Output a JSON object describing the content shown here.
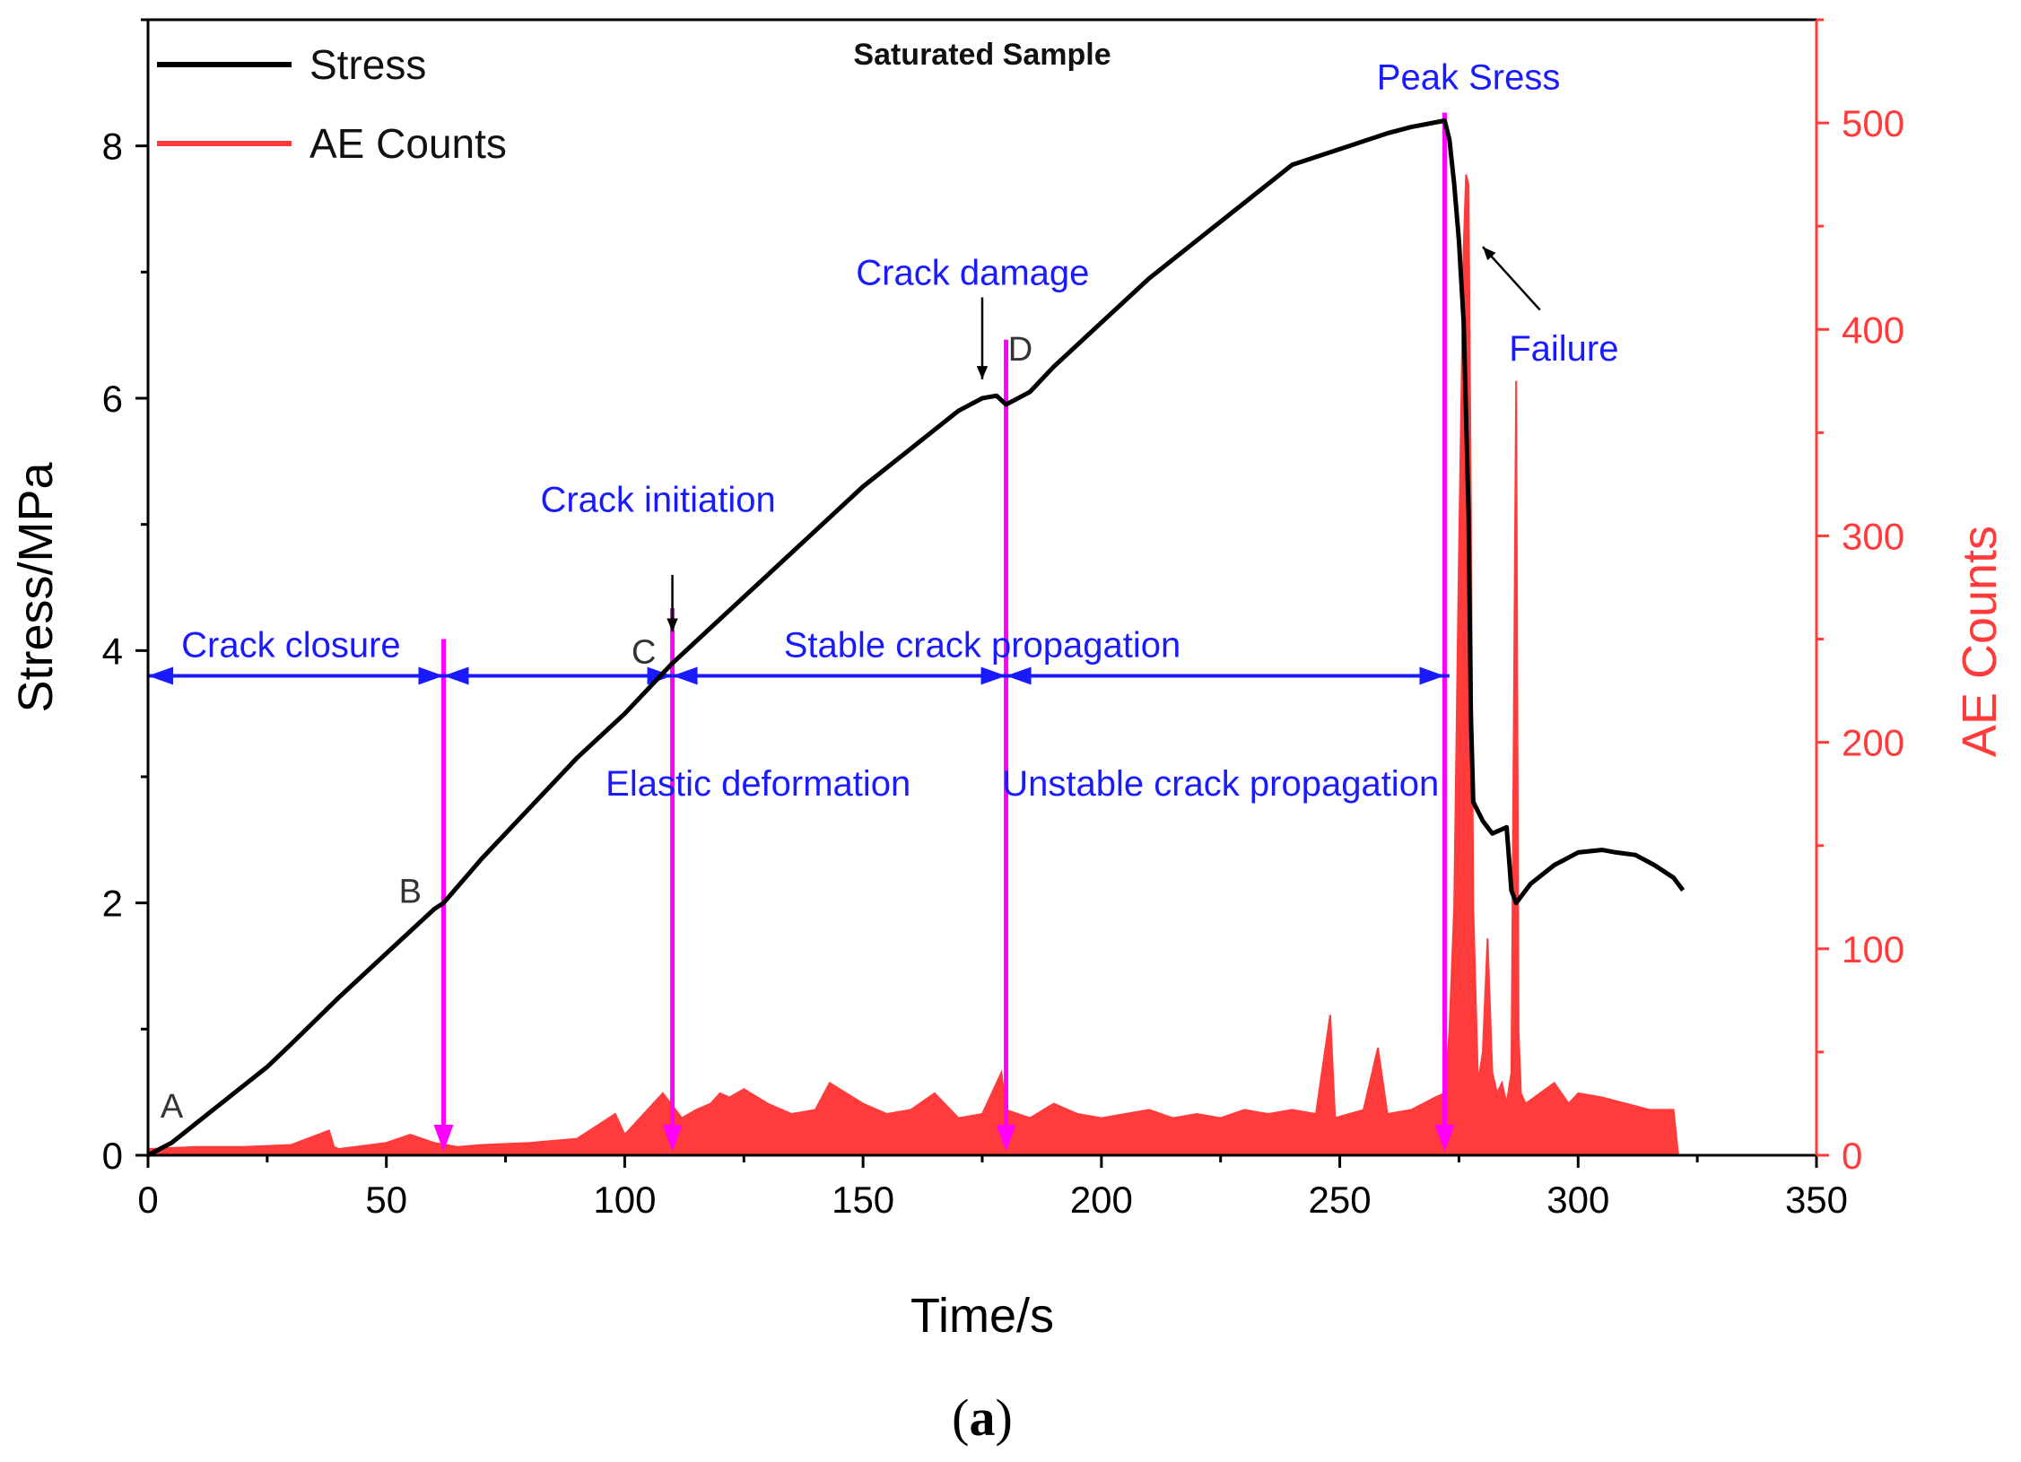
{
  "chart_data": {
    "type": "line",
    "title": "Saturated Sample",
    "xlabel": "Time/s",
    "ylabel": "Stress/MPa",
    "y2label": "AE Counts",
    "xlim": [
      0,
      350
    ],
    "ylim": [
      0,
      9
    ],
    "y2lim": [
      0,
      550
    ],
    "xticks": [
      0,
      50,
      100,
      150,
      200,
      250,
      300,
      350
    ],
    "yticks": [
      0,
      2,
      4,
      6,
      8
    ],
    "y2ticks": [
      0,
      100,
      200,
      300,
      400,
      500
    ],
    "legend": {
      "position": "top-left",
      "entries": [
        "Stress",
        "AE Counts"
      ]
    },
    "colors": {
      "stress": "#000000",
      "ae": "#ff3b3b",
      "annotation": "#1a1aff",
      "marker": "#ff00ff",
      "right_axis": "#ff3b3b"
    },
    "series": [
      {
        "name": "Stress",
        "axis": "left",
        "x": [
          0,
          5,
          10,
          15,
          20,
          25,
          30,
          40,
          50,
          60,
          62,
          70,
          80,
          90,
          100,
          110,
          120,
          130,
          140,
          150,
          160,
          170,
          175,
          178,
          180,
          185,
          190,
          200,
          210,
          220,
          230,
          240,
          248,
          252,
          260,
          265,
          272,
          273,
          274,
          275,
          276,
          277,
          277.5,
          278,
          280,
          282,
          285,
          286,
          286.5,
          287,
          290,
          295,
          300,
          305,
          308,
          312,
          316,
          320,
          322
        ],
        "y": [
          0,
          0.1,
          0.25,
          0.4,
          0.55,
          0.7,
          0.88,
          1.25,
          1.6,
          1.95,
          2.0,
          2.35,
          2.75,
          3.15,
          3.5,
          3.9,
          4.25,
          4.6,
          4.95,
          5.3,
          5.6,
          5.9,
          6.0,
          6.02,
          5.95,
          6.05,
          6.25,
          6.6,
          6.95,
          7.25,
          7.55,
          7.85,
          7.95,
          8.0,
          8.1,
          8.15,
          8.2,
          8.05,
          7.7,
          7.25,
          6.6,
          5.1,
          3.5,
          2.8,
          2.65,
          2.55,
          2.6,
          2.1,
          2.05,
          2.0,
          2.15,
          2.3,
          2.4,
          2.42,
          2.4,
          2.38,
          2.3,
          2.2,
          2.1
        ]
      },
      {
        "name": "AE Counts",
        "axis": "right",
        "x": [
          0,
          10,
          20,
          30,
          38,
          39,
          40,
          50,
          55,
          60,
          65,
          70,
          80,
          90,
          98,
          100,
          108,
          112,
          115,
          118,
          120,
          122,
          125,
          130,
          135,
          140,
          143,
          150,
          155,
          160,
          165,
          170,
          175,
          179,
          180,
          185,
          190,
          195,
          200,
          205,
          210,
          215,
          220,
          225,
          230,
          235,
          240,
          245,
          248,
          249,
          252,
          255,
          258,
          260,
          265,
          270,
          272,
          273,
          274,
          275,
          276,
          276.5,
          277,
          277.5,
          278,
          279,
          280,
          281,
          282,
          283,
          284,
          285,
          286,
          287,
          287.5,
          288,
          289,
          292,
          295,
          298,
          300,
          305,
          310,
          315,
          320,
          321
        ],
        "y": [
          3,
          4,
          4,
          5,
          12,
          4,
          3,
          6,
          10,
          6,
          4,
          5,
          6,
          8,
          20,
          10,
          30,
          18,
          22,
          25,
          30,
          28,
          32,
          25,
          20,
          22,
          35,
          25,
          20,
          22,
          30,
          18,
          20,
          40,
          22,
          18,
          25,
          20,
          18,
          20,
          22,
          18,
          20,
          18,
          22,
          20,
          22,
          20,
          68,
          18,
          20,
          22,
          52,
          20,
          22,
          28,
          30,
          60,
          120,
          290,
          440,
          475,
          470,
          315,
          120,
          35,
          50,
          105,
          40,
          30,
          35,
          25,
          40,
          375,
          60,
          30,
          25,
          30,
          35,
          25,
          30,
          28,
          25,
          22,
          22,
          0
        ]
      }
    ],
    "annotations": [
      {
        "text": "Crack closure",
        "x": 30,
        "y": 3.95,
        "type": "region-label"
      },
      {
        "text": "Elastic deformation",
        "x": 128,
        "y": 2.85,
        "type": "region-label"
      },
      {
        "text": "Stable crack propagation",
        "x": 175,
        "y": 3.95,
        "type": "region-label"
      },
      {
        "text": "Unstable crack propagation",
        "x": 225,
        "y": 2.85,
        "type": "region-label"
      },
      {
        "text": "Crack initiation",
        "x": 107,
        "y": 5.1,
        "type": "callout"
      },
      {
        "text": "Crack damage",
        "x": 173,
        "y": 6.9,
        "type": "callout"
      },
      {
        "text": "Peak Sress",
        "x": 277,
        "y": 8.45,
        "type": "callout"
      },
      {
        "text": "Failure",
        "x": 297,
        "y": 6.3,
        "type": "callout"
      }
    ],
    "points": [
      {
        "label": "A",
        "x": 5,
        "y": 0.3
      },
      {
        "label": "B",
        "x": 55,
        "y": 2.0
      },
      {
        "label": "C",
        "x": 104,
        "y": 3.9
      },
      {
        "label": "D",
        "x": 183,
        "y": 6.3
      }
    ],
    "phase_boundaries": [
      {
        "x": 62,
        "ae_top": 250
      },
      {
        "x": 110,
        "ae_top": 265
      },
      {
        "x": 180,
        "ae_top": 395
      },
      {
        "x": 272,
        "ae_top": 505
      }
    ],
    "arrow_level": 3.8,
    "arrow_span": [
      0,
      273
    ],
    "caption": "(a)",
    "caption_letter": "a"
  }
}
